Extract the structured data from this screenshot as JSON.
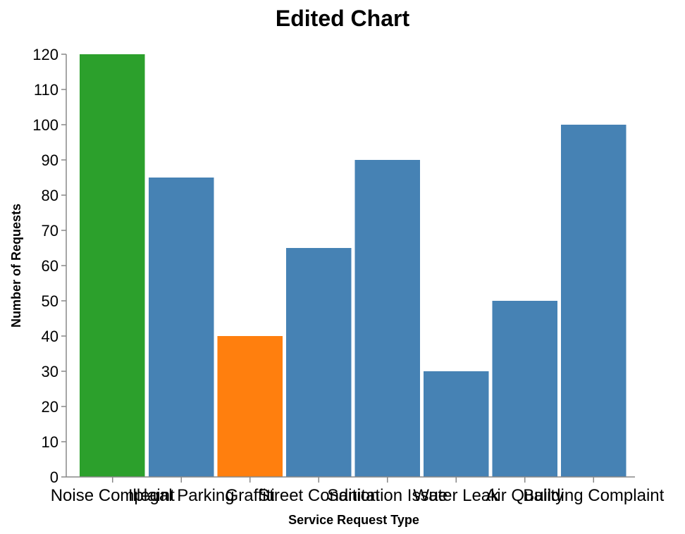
{
  "chart_data": {
    "type": "bar",
    "title": "Edited Chart",
    "xlabel": "Service Request Type",
    "ylabel": "Number of Requests",
    "ylim": [
      0,
      120
    ],
    "yticks": [
      0,
      10,
      20,
      30,
      40,
      50,
      60,
      70,
      80,
      90,
      100,
      110,
      120
    ],
    "grid": false,
    "categories": [
      "Noise Complaint",
      "Illegal Parking",
      "Graffiti",
      "Street Condition",
      "Sanitation Issue",
      "Water Leak",
      "Air Quality",
      "Building Complaint"
    ],
    "values": [
      120,
      85,
      40,
      65,
      90,
      30,
      50,
      100
    ],
    "colors": [
      "#2ca02c",
      "#4682b4",
      "#ff7f0e",
      "#4682b4",
      "#4682b4",
      "#4682b4",
      "#4682b4",
      "#4682b4"
    ]
  }
}
